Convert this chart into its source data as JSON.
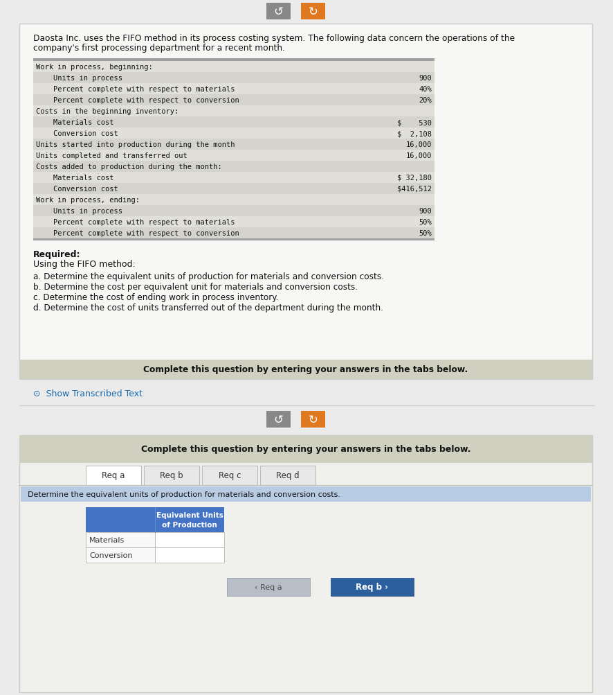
{
  "title_text1": "Daosta Inc. uses the FIFO method in its process costing system. The following data concern the operations of the",
  "title_text2": "company's first processing department for a recent month.",
  "table_rows": [
    {
      "label": "Work in process, beginning:",
      "value": ""
    },
    {
      "label": "    Units in process",
      "value": "900"
    },
    {
      "label": "    Percent complete with respect to materials",
      "value": "40%"
    },
    {
      "label": "    Percent complete with respect to conversion",
      "value": "20%"
    },
    {
      "label": "Costs in the beginning inventory:",
      "value": ""
    },
    {
      "label": "    Materials cost",
      "value": "$    530"
    },
    {
      "label": "    Conversion cost",
      "value": "$  2,108"
    },
    {
      "label": "Units started into production during the month",
      "value": "16,000"
    },
    {
      "label": "Units completed and transferred out",
      "value": "16,000"
    },
    {
      "label": "Costs added to production during the month:",
      "value": ""
    },
    {
      "label": "    Materials cost",
      "value": "$ 32,180"
    },
    {
      "label": "    Conversion cost",
      "value": "$416,512"
    },
    {
      "label": "Work in process, ending:",
      "value": ""
    },
    {
      "label": "    Units in process",
      "value": "900"
    },
    {
      "label": "    Percent complete with respect to materials",
      "value": "50%"
    },
    {
      "label": "    Percent complete with respect to conversion",
      "value": "50%"
    }
  ],
  "req_items": [
    "a. Determine the equivalent units of production for materials and conversion costs.",
    "b. Determine the cost per equivalent unit for materials and conversion costs.",
    "c. Determine the cost of ending work in process inventory.",
    "d. Determine the cost of units transferred out of the department during the month."
  ],
  "complete_text": "Complete this question by entering your answers in the tabs below.",
  "tab_names": [
    "Req a",
    "Req b",
    "Req c",
    "Req d"
  ],
  "instr_text": "Determine the equivalent units of production for materials and conversion costs.",
  "bg_color": "#ebebeb",
  "card1_bg": "#f7f7f5",
  "card1_border": "#cccccc",
  "table_top_border": "#a0a0a0",
  "table_row_dark": "#d4d4cc",
  "table_row_light": "#e0e0d8",
  "table_bottom_border": "#888888",
  "footer1_bg": "#d0d0c0",
  "show_text_color": "#1a6aaa",
  "icon1_bg": "#888888",
  "icon2_bg": "#e07820",
  "card2_bg": "#f0f0ec",
  "card2_border": "#cccccc",
  "header2_bg": "#d0d0c0",
  "tab_active_bg": "#ffffff",
  "tab_inactive_bg": "#e8e8e8",
  "tab_border": "#bbbbbb",
  "instr_bar_bg": "#b8cce4",
  "tbl2_header_bg": "#4472c4",
  "tbl2_header_text": "#ffffff",
  "tbl2_label_bg": "#f8f8f8",
  "tbl2_input_bg": "#ffffff",
  "tbl2_border": "#aaaaaa",
  "btn_gray_bg": "#b8bec8",
  "btn_blue_bg": "#2c5f9e",
  "btn_text_white": "#ffffff",
  "btn_text_dark": "#444444"
}
